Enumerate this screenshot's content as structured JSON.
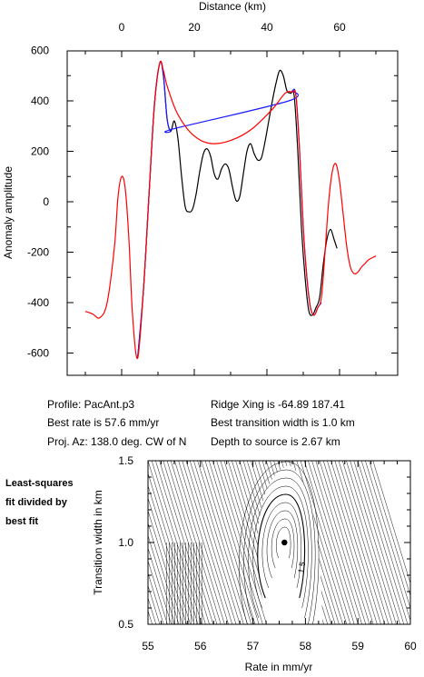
{
  "chart_data": [
    {
      "type": "line",
      "ylabel": "Anomaly amplitude",
      "xlabel": "Distance (km)",
      "xlim": [
        -10,
        75
      ],
      "ylim": [
        -700,
        600
      ],
      "xticks": [
        0,
        20,
        40,
        60
      ],
      "yticks": [
        600,
        400,
        200,
        0,
        -200,
        -400,
        -600
      ],
      "grid": false,
      "series": [
        {
          "color": "#000000",
          "x": [
            4.4,
            6,
            7.5,
            9,
            10.5,
            11.5,
            12.5,
            13.5,
            14.5,
            15.5,
            16.5,
            17.5,
            18.5,
            19.5,
            20.5,
            21.5,
            22.5,
            23.5,
            24.5,
            25.5,
            26.5,
            27.5,
            28.5,
            29.5,
            30.5,
            31.5,
            32.5,
            33.5,
            34.5,
            35.5,
            36.5,
            37.5,
            38.5,
            39.5,
            40.5,
            41.5,
            42.5,
            43.5,
            44.5,
            45.5,
            46.5,
            47.5,
            48.5,
            49.5,
            50.5,
            51.5,
            52.5,
            53.5,
            54.5,
            55.5,
            56.5,
            57.5,
            58.5,
            59.3
          ],
          "y": [
            -620,
            -350,
            20,
            380,
            550,
            500,
            330,
            280,
            320,
            250,
            100,
            -20,
            -40,
            -30,
            30,
            120,
            190,
            210,
            180,
            110,
            90,
            130,
            150,
            130,
            60,
            5,
            20,
            110,
            200,
            230,
            190,
            165,
            175,
            240,
            320,
            400,
            470,
            520,
            500,
            440,
            430,
            420,
            200,
            -100,
            -300,
            -430,
            -450,
            -420,
            -380,
            -250,
            -150,
            -110,
            -150,
            -185
          ]
        },
        {
          "color": "#1a1aff",
          "x": [
            4.4,
            6,
            7.5,
            9,
            10.5,
            11.5,
            12.5,
            13.5,
            14.5,
            46,
            47,
            48,
            49,
            50,
            51,
            52,
            53,
            54,
            55
          ],
          "y": [
            -620,
            -350,
            20,
            380,
            550,
            500,
            330,
            280,
            290,
            400,
            440,
            420,
            200,
            -100,
            -300,
            -420,
            -450,
            -420,
            -400
          ]
        },
        {
          "color": "#ff0000",
          "x": [
            -10,
            -8,
            -6,
            -4,
            -2,
            -1,
            0,
            1,
            2,
            3,
            4.4,
            6,
            7.5,
            9,
            10.5,
            11.5,
            12.5,
            15,
            18,
            21,
            24,
            27,
            30,
            33,
            36,
            39,
            42,
            45,
            47,
            48,
            49,
            50,
            51,
            52,
            53,
            54,
            55,
            56,
            57,
            58,
            59,
            60,
            61,
            62,
            63,
            64,
            65,
            66,
            67,
            68,
            70
          ],
          "y": [
            -435,
            -445,
            -460,
            -400,
            -180,
            20,
            100,
            50,
            -150,
            -450,
            -620,
            -350,
            20,
            380,
            550,
            520,
            460,
            360,
            290,
            250,
            232,
            232,
            243,
            262,
            290,
            330,
            375,
            430,
            435,
            420,
            200,
            -100,
            -300,
            -420,
            -450,
            -420,
            -380,
            -200,
            0,
            120,
            150,
            80,
            -50,
            -180,
            -260,
            -285,
            -280,
            -260,
            -245,
            -230,
            -215
          ]
        }
      ]
    },
    {
      "type": "contour",
      "xlabel": "Rate in mm/yr",
      "ylabel": "Transition width in km",
      "xlim": [
        55,
        60
      ],
      "ylim": [
        0.5,
        1.5
      ],
      "xticks": [
        55,
        56,
        57,
        58,
        59,
        60
      ],
      "yticks": [
        0.5,
        1.0,
        1.5
      ],
      "best_fit_point": [
        57.6,
        1.0
      ],
      "contour_label": "1.5"
    }
  ],
  "info": {
    "profile": "Profile: PacAnt.p3",
    "ridge": "Ridge Xing is -64.89 187.41",
    "rate": "Best rate is 57.6 mm/yr",
    "width": "Best transition width is 1.0 km",
    "az": "Proj. Az: 138.0 deg. CW of N",
    "depth": "Depth to source is   2.67 km"
  },
  "side_label": [
    "Least-squares",
    "fit divided by",
    "best fit"
  ]
}
